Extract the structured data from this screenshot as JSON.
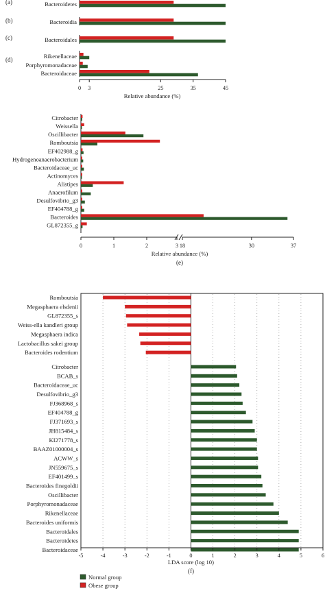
{
  "colors": {
    "normal": "#2d5a2d",
    "obese": "#d32222",
    "axis": "#222222",
    "grid": "#999999"
  },
  "legend": {
    "normal": "Normal group",
    "obese": "Obese group"
  },
  "chart_data": [
    {
      "type": "bar",
      "orientation": "horizontal",
      "panel": "(a)",
      "categories": [
        "Bacteroidetes"
      ],
      "series": [
        {
          "name": "Obese group",
          "values": [
            29
          ]
        },
        {
          "name": "Normal group",
          "values": [
            45
          ]
        }
      ],
      "xlim": [
        0,
        45
      ]
    },
    {
      "type": "bar",
      "orientation": "horizontal",
      "panel": "(b)",
      "categories": [
        "Bacteroidia"
      ],
      "series": [
        {
          "name": "Obese group",
          "values": [
            29
          ]
        },
        {
          "name": "Normal group",
          "values": [
            45
          ]
        }
      ],
      "xlim": [
        0,
        45
      ]
    },
    {
      "type": "bar",
      "orientation": "horizontal",
      "panel": "(c)",
      "categories": [
        "Bacteroidales"
      ],
      "series": [
        {
          "name": "Obese group",
          "values": [
            29
          ]
        },
        {
          "name": "Normal group",
          "values": [
            45
          ]
        }
      ],
      "xlim": [
        0,
        45
      ]
    },
    {
      "type": "bar",
      "orientation": "horizontal",
      "panel": "(d)",
      "categories": [
        "Rikenellaceae",
        "Porphyromonadaceae",
        "Bacteroidaceae"
      ],
      "series": [
        {
          "name": "Obese group",
          "values": [
            1.2,
            1.0,
            21.5
          ]
        },
        {
          "name": "Normal group",
          "values": [
            3.0,
            2.5,
            36.5
          ]
        }
      ],
      "xlim": [
        0,
        45
      ],
      "xticks": [
        "0",
        "3",
        "25",
        "35",
        "45"
      ],
      "xlabel": "Relative abundance (%)"
    },
    {
      "type": "bar",
      "orientation": "horizontal",
      "panel": "(e)",
      "categories": [
        "Citrobacter",
        "Weissella",
        "Oscillibacter",
        "Romboutsia",
        "EF402988_g",
        "Hydrogenoanaerobacterium",
        "Bacteroidaceae_uc",
        "Actinomyces",
        "Alistipes",
        "Anaerofilum",
        "Desulfovibrio_g3",
        "EF404788_g",
        "Bacteroides",
        "GL872355_g"
      ],
      "series": [
        {
          "name": "Obese group",
          "values": [
            0.05,
            0.1,
            1.35,
            2.4,
            0.05,
            0.04,
            0.04,
            0.04,
            1.3,
            0.04,
            0.04,
            0.04,
            22.0,
            0.18
          ]
        },
        {
          "name": "Normal group",
          "values": [
            0.04,
            0.03,
            1.9,
            0.5,
            0.08,
            0.07,
            0.09,
            0.02,
            3.5,
            0.3,
            0.12,
            0.1,
            36.0,
            0.05
          ]
        }
      ],
      "xticks": [
        "0",
        "1",
        "2",
        "3",
        "18",
        "30",
        "37"
      ],
      "axis_break": "between 3 and 18",
      "xlabel": "Relative abundance (%)"
    },
    {
      "type": "bar",
      "orientation": "horizontal",
      "panel": "(f)",
      "categories": [
        "Romboutsia",
        "Megasphaera elsdenii",
        "GL872355_s",
        "Weiss-ella kandleri group",
        "Megasphaera indica",
        "Lactobacillus sakei group",
        "Bacteroides rodentium",
        "Citrobacter",
        "BCAB_s",
        "Bacteroidaceae_uc",
        "Desulfovibrio_g3",
        "FJ368968_s",
        "EF404788_g",
        "FJ371693_s",
        "JH815484_s",
        "KI271778_s",
        "BAAZ01000004_s",
        "ACWW_s",
        "JN559675_s",
        "EF401499_s",
        "Bacteroides finegoldii",
        "Oscillibacter",
        "Porphyromonadaceae",
        "Rikenellaceae",
        "Bacteroides uniformis",
        "Bacteroidales",
        "Bacteroidetes",
        "Bacteroidaceae"
      ],
      "values": [
        -4.0,
        -3.0,
        -2.95,
        -2.9,
        -2.35,
        -2.3,
        -2.05,
        2.05,
        2.1,
        2.2,
        2.3,
        2.35,
        2.5,
        2.8,
        2.9,
        3.0,
        3.0,
        3.05,
        3.05,
        3.2,
        3.25,
        3.4,
        3.75,
        4.0,
        4.4,
        4.9,
        4.9,
        4.9
      ],
      "groups": [
        "Obese group",
        "Obese group",
        "Obese group",
        "Obese group",
        "Obese group",
        "Obese group",
        "Obese group",
        "Normal group",
        "Normal group",
        "Normal group",
        "Normal group",
        "Normal group",
        "Normal group",
        "Normal group",
        "Normal group",
        "Normal group",
        "Normal group",
        "Normal group",
        "Normal group",
        "Normal group",
        "Normal group",
        "Normal group",
        "Normal group",
        "Normal group",
        "Normal group",
        "Normal group",
        "Normal group",
        "Normal group"
      ],
      "xlim": [
        -5,
        6
      ],
      "xticks": [
        "-5",
        "-4",
        "-3",
        "-2",
        "-1",
        "0",
        "1",
        "2",
        "3",
        "4",
        "5",
        "6"
      ],
      "xlabel": "LDA score (log 10)",
      "grid": "vertical dotted"
    }
  ]
}
